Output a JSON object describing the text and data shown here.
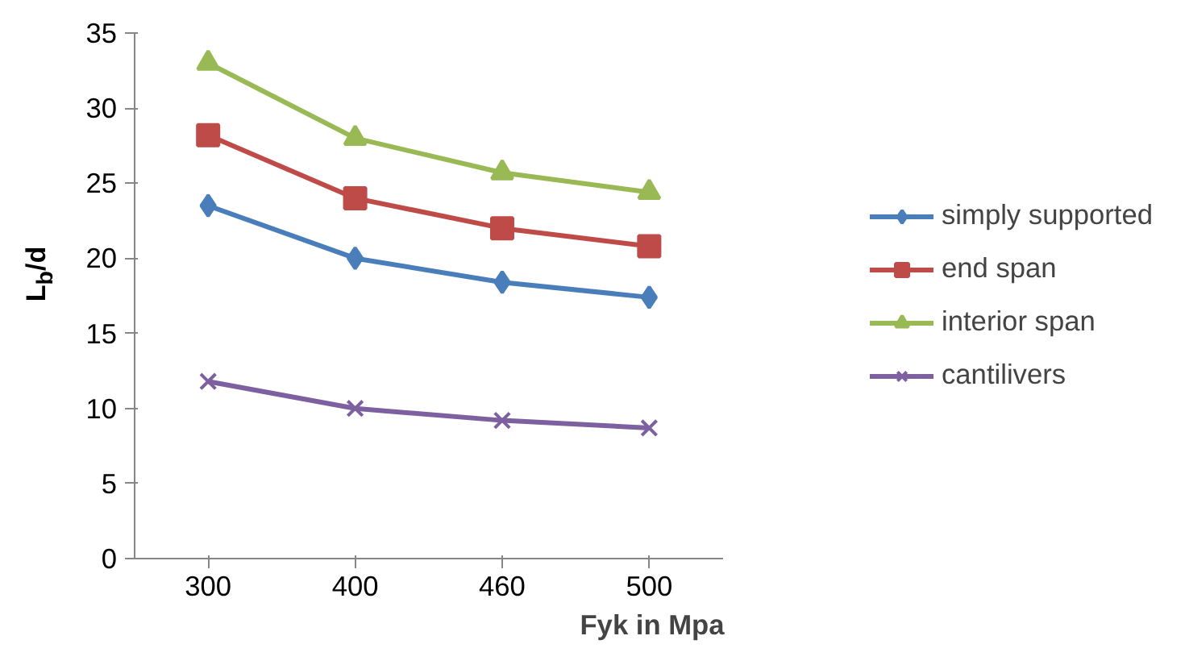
{
  "chart_data": {
    "type": "line",
    "xlabel": "Fyk in Mpa",
    "ylabel": "L$_{b}$/d",
    "categories": [
      "300",
      "400",
      "460",
      "500"
    ],
    "ylim": [
      0,
      35
    ],
    "yticks": [
      0,
      5,
      10,
      15,
      20,
      25,
      30,
      35
    ],
    "grid": false,
    "legend": "right",
    "line_style": "solid",
    "series": [
      {
        "name": "simply supported",
        "color": "#4a7ebb",
        "marker": "diamond",
        "values": [
          23.5,
          20,
          18.4,
          17.4
        ]
      },
      {
        "name": "end span",
        "color": "#be4b48",
        "marker": "square",
        "values": [
          28.2,
          24,
          22,
          20.8
        ]
      },
      {
        "name": "interior span",
        "color": "#98b954",
        "marker": "triangle",
        "values": [
          33,
          28,
          25.7,
          24.4
        ]
      },
      {
        "name": "cantilivers",
        "color": "#7d60a0",
        "marker": "cross",
        "values": [
          11.8,
          10,
          9.2,
          8.7
        ]
      }
    ]
  }
}
